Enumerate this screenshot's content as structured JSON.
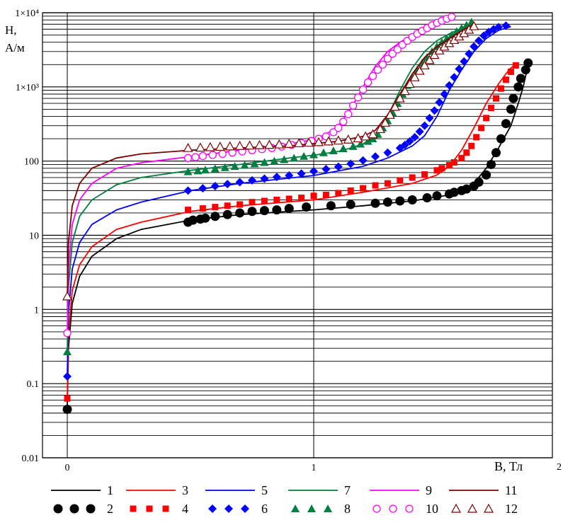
{
  "chart_data": {
    "type": "line",
    "title": "",
    "ylabel_line1": "H,",
    "ylabel_line2": "А/м",
    "xlabel": "B, Тл",
    "x_corner_label": "2",
    "x_tick_labels": [
      "0",
      "1"
    ],
    "y_tick_labels": [
      "0.01",
      "0.1",
      "1",
      "10",
      "100",
      "1×10³",
      "1×10⁴"
    ],
    "xlim": [
      -0.1,
      2.0
    ],
    "ylim": [
      0.01,
      10000
    ],
    "yscale": "log",
    "grid": true,
    "legend_position": "bottom",
    "series": [
      {
        "name": "1",
        "style": "line",
        "color": "#000000",
        "x": [
          0.0,
          0.005,
          0.02,
          0.05,
          0.1,
          0.2,
          0.3,
          0.5,
          0.7,
          1.0,
          1.2,
          1.4,
          1.55,
          1.6,
          1.65,
          1.7,
          1.75,
          1.8,
          1.83,
          1.85,
          1.87
        ],
        "y": [
          0.05,
          0.3,
          1.2,
          2.8,
          5.2,
          9,
          12,
          16,
          19,
          22,
          25,
          29,
          35,
          40,
          50,
          80,
          150,
          300,
          600,
          1000,
          2000
        ]
      },
      {
        "name": "2",
        "style": "marker",
        "marker": "circle-filled",
        "color": "#000000",
        "x": [
          0.0,
          0.49,
          0.51,
          0.54,
          0.56,
          0.6,
          0.65,
          0.7,
          0.75,
          0.8,
          0.85,
          0.9,
          0.97,
          1.07,
          1.15,
          1.25,
          1.3,
          1.35,
          1.4,
          1.46,
          1.5,
          1.55,
          1.57,
          1.6,
          1.62,
          1.65,
          1.67,
          1.7,
          1.72,
          1.74,
          1.76,
          1.78,
          1.8,
          1.81,
          1.83,
          1.84,
          1.86,
          1.87
        ],
        "y": [
          0.045,
          15,
          16,
          16.5,
          17,
          18,
          19,
          20,
          21,
          21.5,
          22,
          23,
          24,
          25,
          26,
          27,
          28,
          29,
          30,
          32,
          34,
          36,
          38,
          40,
          42,
          46,
          52,
          65,
          90,
          130,
          200,
          320,
          500,
          700,
          1000,
          1300,
          1700,
          2100
        ]
      },
      {
        "name": "3",
        "style": "line",
        "color": "#ff0000",
        "x": [
          0.0,
          0.005,
          0.02,
          0.05,
          0.1,
          0.2,
          0.3,
          0.5,
          0.7,
          1.0,
          1.2,
          1.4,
          1.5,
          1.55,
          1.6,
          1.65,
          1.7,
          1.75,
          1.78,
          1.8,
          1.82
        ],
        "y": [
          0.065,
          0.45,
          1.8,
          4,
          7,
          12,
          15,
          21,
          25,
          30,
          38,
          50,
          65,
          85,
          140,
          280,
          600,
          1100,
          1500,
          1800,
          2000
        ]
      },
      {
        "name": "4",
        "style": "marker",
        "marker": "square-filled",
        "color": "#ff0000",
        "x": [
          0.0,
          0.49,
          0.55,
          0.6,
          0.65,
          0.7,
          0.75,
          0.8,
          0.85,
          0.9,
          0.95,
          1.0,
          1.05,
          1.1,
          1.15,
          1.2,
          1.25,
          1.3,
          1.35,
          1.4,
          1.45,
          1.5,
          1.52,
          1.55,
          1.57,
          1.6,
          1.62,
          1.64,
          1.66,
          1.68,
          1.7,
          1.72,
          1.74,
          1.76,
          1.78,
          1.8,
          1.82
        ],
        "y": [
          0.063,
          22,
          23,
          24,
          25,
          26,
          28,
          29,
          30,
          31,
          32,
          34,
          35,
          37,
          40,
          43,
          47,
          50,
          55,
          60,
          66,
          75,
          80,
          88,
          96,
          110,
          130,
          160,
          210,
          280,
          380,
          520,
          700,
          950,
          1250,
          1600,
          1950
        ]
      },
      {
        "name": "5",
        "style": "line",
        "color": "#0000ff",
        "x": [
          0.0,
          0.005,
          0.02,
          0.05,
          0.1,
          0.2,
          0.3,
          0.5,
          0.7,
          1.0,
          1.2,
          1.3,
          1.4,
          1.45,
          1.5,
          1.55,
          1.6,
          1.65,
          1.7,
          1.75,
          1.8
        ],
        "y": [
          0.13,
          0.9,
          3.5,
          8,
          14,
          22,
          28,
          40,
          50,
          64,
          85,
          110,
          160,
          220,
          400,
          900,
          1700,
          3000,
          4500,
          5800,
          6500
        ]
      },
      {
        "name": "6",
        "style": "marker",
        "marker": "diamond-filled",
        "color": "#0000ff",
        "x": [
          0.0,
          0.49,
          0.55,
          0.6,
          0.65,
          0.7,
          0.75,
          0.8,
          0.85,
          0.9,
          0.95,
          1.0,
          1.05,
          1.1,
          1.15,
          1.2,
          1.25,
          1.3,
          1.35,
          1.37,
          1.39,
          1.41,
          1.43,
          1.45,
          1.47,
          1.49,
          1.51,
          1.53,
          1.55,
          1.57,
          1.59,
          1.61,
          1.63,
          1.65,
          1.67,
          1.69,
          1.71,
          1.73,
          1.75,
          1.78
        ],
        "y": [
          0.125,
          40,
          43,
          46,
          49,
          52,
          55,
          58,
          61,
          64,
          68,
          73,
          78,
          84,
          92,
          102,
          115,
          130,
          150,
          165,
          185,
          210,
          250,
          300,
          380,
          480,
          620,
          800,
          1050,
          1350,
          1750,
          2200,
          2800,
          3500,
          4200,
          4900,
          5500,
          6000,
          6400,
          6700
        ]
      },
      {
        "name": "7",
        "style": "line",
        "color": "#008040",
        "x": [
          0.0,
          0.005,
          0.02,
          0.05,
          0.1,
          0.2,
          0.3,
          0.5,
          0.7,
          0.9,
          1.0,
          1.1,
          1.15,
          1.2,
          1.25,
          1.3,
          1.35,
          1.4,
          1.45,
          1.5,
          1.55,
          1.6,
          1.65
        ],
        "y": [
          0.28,
          2,
          8,
          18,
          30,
          48,
          60,
          75,
          90,
          110,
          120,
          135,
          150,
          170,
          220,
          400,
          900,
          1800,
          3000,
          4200,
          5200,
          6200,
          7500
        ]
      },
      {
        "name": "8",
        "style": "marker",
        "marker": "triangle-filled",
        "color": "#008040",
        "x": [
          0.0,
          0.49,
          0.53,
          0.56,
          0.6,
          0.64,
          0.68,
          0.72,
          0.76,
          0.8,
          0.84,
          0.88,
          0.92,
          0.96,
          1.0,
          1.04,
          1.08,
          1.12,
          1.16,
          1.19,
          1.22,
          1.24,
          1.26,
          1.28,
          1.3,
          1.32,
          1.34,
          1.36,
          1.38,
          1.4,
          1.42,
          1.44,
          1.46,
          1.48,
          1.5,
          1.52,
          1.54,
          1.56,
          1.58,
          1.6,
          1.62,
          1.64
        ],
        "y": [
          0.27,
          72,
          74,
          76,
          79,
          82,
          85,
          88,
          92,
          96,
          100,
          105,
          110,
          116,
          122,
          130,
          138,
          147,
          158,
          170,
          185,
          200,
          230,
          280,
          350,
          450,
          600,
          800,
          1050,
          1350,
          1700,
          2100,
          2500,
          3000,
          3500,
          4000,
          4500,
          5000,
          5600,
          6200,
          6800,
          7500
        ]
      },
      {
        "name": "9",
        "style": "line",
        "color": "#ff00ff",
        "x": [
          0.0,
          0.005,
          0.02,
          0.05,
          0.1,
          0.2,
          0.3,
          0.5,
          0.7,
          0.9,
          1.0,
          1.05,
          1.1,
          1.15,
          1.2,
          1.25,
          1.3,
          1.35,
          1.4,
          1.45,
          1.5,
          1.55
        ],
        "y": [
          0.5,
          3.5,
          14,
          30,
          50,
          80,
          95,
          115,
          140,
          170,
          195,
          230,
          300,
          500,
          1000,
          1900,
          3000,
          4000,
          5000,
          6000,
          7000,
          8000
        ]
      },
      {
        "name": "10",
        "style": "marker",
        "marker": "circle-open",
        "color": "#ff00ff",
        "x": [
          0.0,
          0.49,
          0.52,
          0.55,
          0.59,
          0.63,
          0.67,
          0.71,
          0.75,
          0.79,
          0.83,
          0.87,
          0.91,
          0.95,
          0.99,
          1.02,
          1.05,
          1.08,
          1.1,
          1.12,
          1.14,
          1.16,
          1.18,
          1.2,
          1.22,
          1.24,
          1.26,
          1.28,
          1.3,
          1.32,
          1.34,
          1.36,
          1.38,
          1.4,
          1.42,
          1.44,
          1.46,
          1.48,
          1.5,
          1.52,
          1.54,
          1.56
        ],
        "y": [
          0.48,
          110,
          113,
          117,
          121,
          125,
          130,
          135,
          140,
          145,
          150,
          157,
          165,
          175,
          187,
          200,
          215,
          245,
          280,
          340,
          430,
          560,
          720,
          920,
          1150,
          1400,
          1700,
          2000,
          2400,
          2800,
          3200,
          3700,
          4200,
          4700,
          5200,
          5700,
          6200,
          6800,
          7300,
          7800,
          8300,
          8800
        ]
      },
      {
        "name": "11",
        "style": "line",
        "color": "#800000",
        "x": [
          0.0,
          0.005,
          0.02,
          0.05,
          0.1,
          0.2,
          0.3,
          0.5,
          0.7,
          0.9,
          1.1,
          1.15,
          1.2,
          1.25,
          1.3,
          1.35,
          1.4,
          1.45,
          1.5,
          1.55,
          1.6,
          1.65
        ],
        "y": [
          1.5,
          8,
          25,
          50,
          80,
          110,
          125,
          140,
          150,
          160,
          185,
          200,
          215,
          260,
          420,
          800,
          1500,
          2500,
          3500,
          4500,
          5700,
          7000
        ]
      },
      {
        "name": "12",
        "style": "marker",
        "marker": "triangle-open",
        "color": "#800000",
        "x": [
          0.0,
          0.49,
          0.54,
          0.58,
          0.62,
          0.66,
          0.7,
          0.74,
          0.78,
          0.82,
          0.86,
          0.9,
          0.94,
          0.98,
          1.02,
          1.06,
          1.1,
          1.14,
          1.18,
          1.21,
          1.24,
          1.27,
          1.29,
          1.31,
          1.33,
          1.35,
          1.37,
          1.39,
          1.41,
          1.43,
          1.45,
          1.47,
          1.49,
          1.51,
          1.53,
          1.55,
          1.57,
          1.59,
          1.61,
          1.63,
          1.65
        ],
        "y": [
          1.5,
          150,
          152,
          154,
          156,
          158,
          160,
          162,
          164,
          166,
          168,
          171,
          174,
          177,
          180,
          184,
          189,
          195,
          203,
          215,
          230,
          270,
          330,
          420,
          540,
          700,
          880,
          1100,
          1350,
          1650,
          1950,
          2300,
          2700,
          3100,
          3500,
          3900,
          4300,
          4800,
          5300,
          5900,
          6600
        ]
      }
    ]
  }
}
